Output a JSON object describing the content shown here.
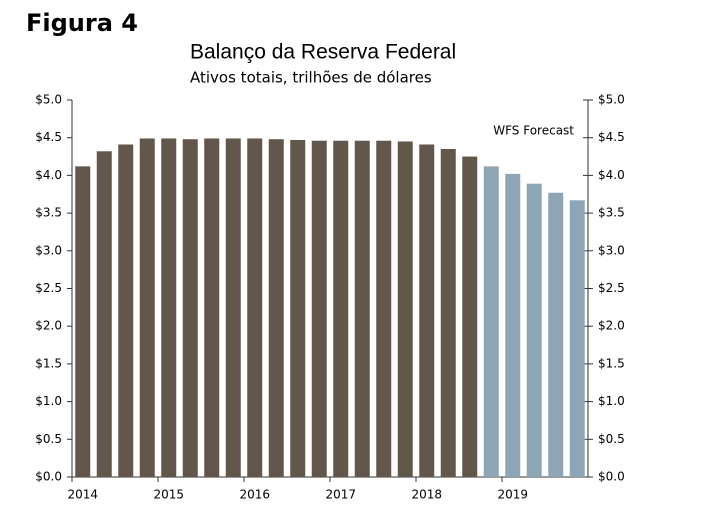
{
  "heading": "Figura 4",
  "chart_data": {
    "type": "bar",
    "title": "Balanço da Reserva Federal",
    "subtitle": "Ativos totais, trilhões de dólares",
    "annotation": "WFS Forecast",
    "categories": [
      "2014",
      null,
      null,
      null,
      "2015",
      null,
      null,
      null,
      "2016",
      null,
      null,
      null,
      "2017",
      null,
      null,
      null,
      "2018",
      null,
      null,
      null,
      "2019",
      null,
      null,
      null
    ],
    "values": [
      4.12,
      4.32,
      4.41,
      4.49,
      4.49,
      4.48,
      4.49,
      4.49,
      4.49,
      4.48,
      4.47,
      4.46,
      4.46,
      4.46,
      4.46,
      4.45,
      4.41,
      4.35,
      4.25,
      4.12,
      4.02,
      3.89,
      3.77,
      3.67
    ],
    "colors": [
      "#63574b",
      "#63574b",
      "#63574b",
      "#63574b",
      "#63574b",
      "#63574b",
      "#63574b",
      "#63574b",
      "#63574b",
      "#63574b",
      "#63574b",
      "#63574b",
      "#63574b",
      "#63574b",
      "#63574b",
      "#63574b",
      "#63574b",
      "#63574b",
      "#63574b",
      "#8ea5b5",
      "#8ea5b5",
      "#8ea5b5",
      "#8ea5b5",
      "#8ea5b5"
    ],
    "ylim": [
      0,
      5
    ],
    "yticks": [
      {
        "value": 0,
        "label": "$0.0"
      },
      {
        "value": 0.5,
        "label": "$0.5"
      },
      {
        "value": 1,
        "label": "$1.0"
      },
      {
        "value": 1.5,
        "label": "$1.5"
      },
      {
        "value": 2,
        "label": "$2.0"
      },
      {
        "value": 2.5,
        "label": "$2.5"
      },
      {
        "value": 3,
        "label": "$3.0"
      },
      {
        "value": 3.5,
        "label": "$3.5"
      },
      {
        "value": 4,
        "label": "$4.0"
      },
      {
        "value": 4.5,
        "label": "$4.5"
      },
      {
        "value": 5,
        "label": "$5.0"
      }
    ],
    "y2lim": [
      0,
      5
    ],
    "y2ticks": [
      {
        "value": 0,
        "label": "$0.0"
      },
      {
        "value": 0.5,
        "label": "$0.5"
      },
      {
        "value": 1,
        "label": "$1.0"
      },
      {
        "value": 1.5,
        "label": "$1.5"
      },
      {
        "value": 2,
        "label": "$2.0"
      },
      {
        "value": 2.5,
        "label": "$2.5"
      },
      {
        "value": 3,
        "label": "$3.0"
      },
      {
        "value": 3.5,
        "label": "$3.5"
      },
      {
        "value": 4,
        "label": "$4.0"
      },
      {
        "value": 4.5,
        "label": "$4.5"
      },
      {
        "value": 5,
        "label": "$5.0"
      }
    ],
    "grid": false
  }
}
